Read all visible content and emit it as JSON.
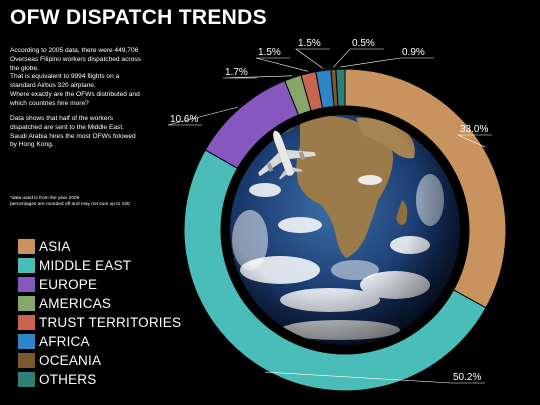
{
  "title": "OFW DISPATCH TRENDS",
  "intro_lines": [
    "According to 2005 data, there were 449,706",
    "Overseas Filipino workers dispatched across",
    "the globe.",
    "That is equivalent to 9994 flights on a",
    "standard Airbus 320 airplane.",
    "Where exactly are the OFWs distributed and",
    "which countries hire more?"
  ],
  "detail_lines": [
    "Data shows that half of the workers",
    "dispatched are sent to the Middle East.",
    "Saudi Arabia hires the most OFWs folowed",
    "by Hong Kong."
  ],
  "note_lines": [
    "*data used is from the year 2005",
    "percentages are rounded off and may not sum up to 100"
  ],
  "center_image": "earth-globe-with-airplane",
  "chart_data": {
    "type": "pie",
    "style": "donut",
    "start": "top, clockwise",
    "legend_position": "left",
    "slices": [
      {
        "name": "ASIA",
        "value": 33.0,
        "label": "33.0%",
        "color": "#c8935f"
      },
      {
        "name": "MIDDLE EAST",
        "value": 50.2,
        "label": "50.2%",
        "color": "#4bbdb8"
      },
      {
        "name": "EUROPE",
        "value": 10.6,
        "label": "10.6%",
        "color": "#8557bf"
      },
      {
        "name": "AMERICAS",
        "value": 1.7,
        "label": "1.7%",
        "color": "#86a66c"
      },
      {
        "name": "TRUST TERRITORIES",
        "value": 1.5,
        "label": "1.5%",
        "color": "#c8644f"
      },
      {
        "name": "AFRICA",
        "value": 1.5,
        "label": "1.5%",
        "color": "#2f84c6"
      },
      {
        "name": "OCEANIA",
        "value": 0.5,
        "label": "0.5%",
        "color": "#7a5a2c"
      },
      {
        "name": "OTHERS",
        "value": 0.9,
        "label": "0.9%",
        "color": "#2f7f78"
      }
    ]
  }
}
